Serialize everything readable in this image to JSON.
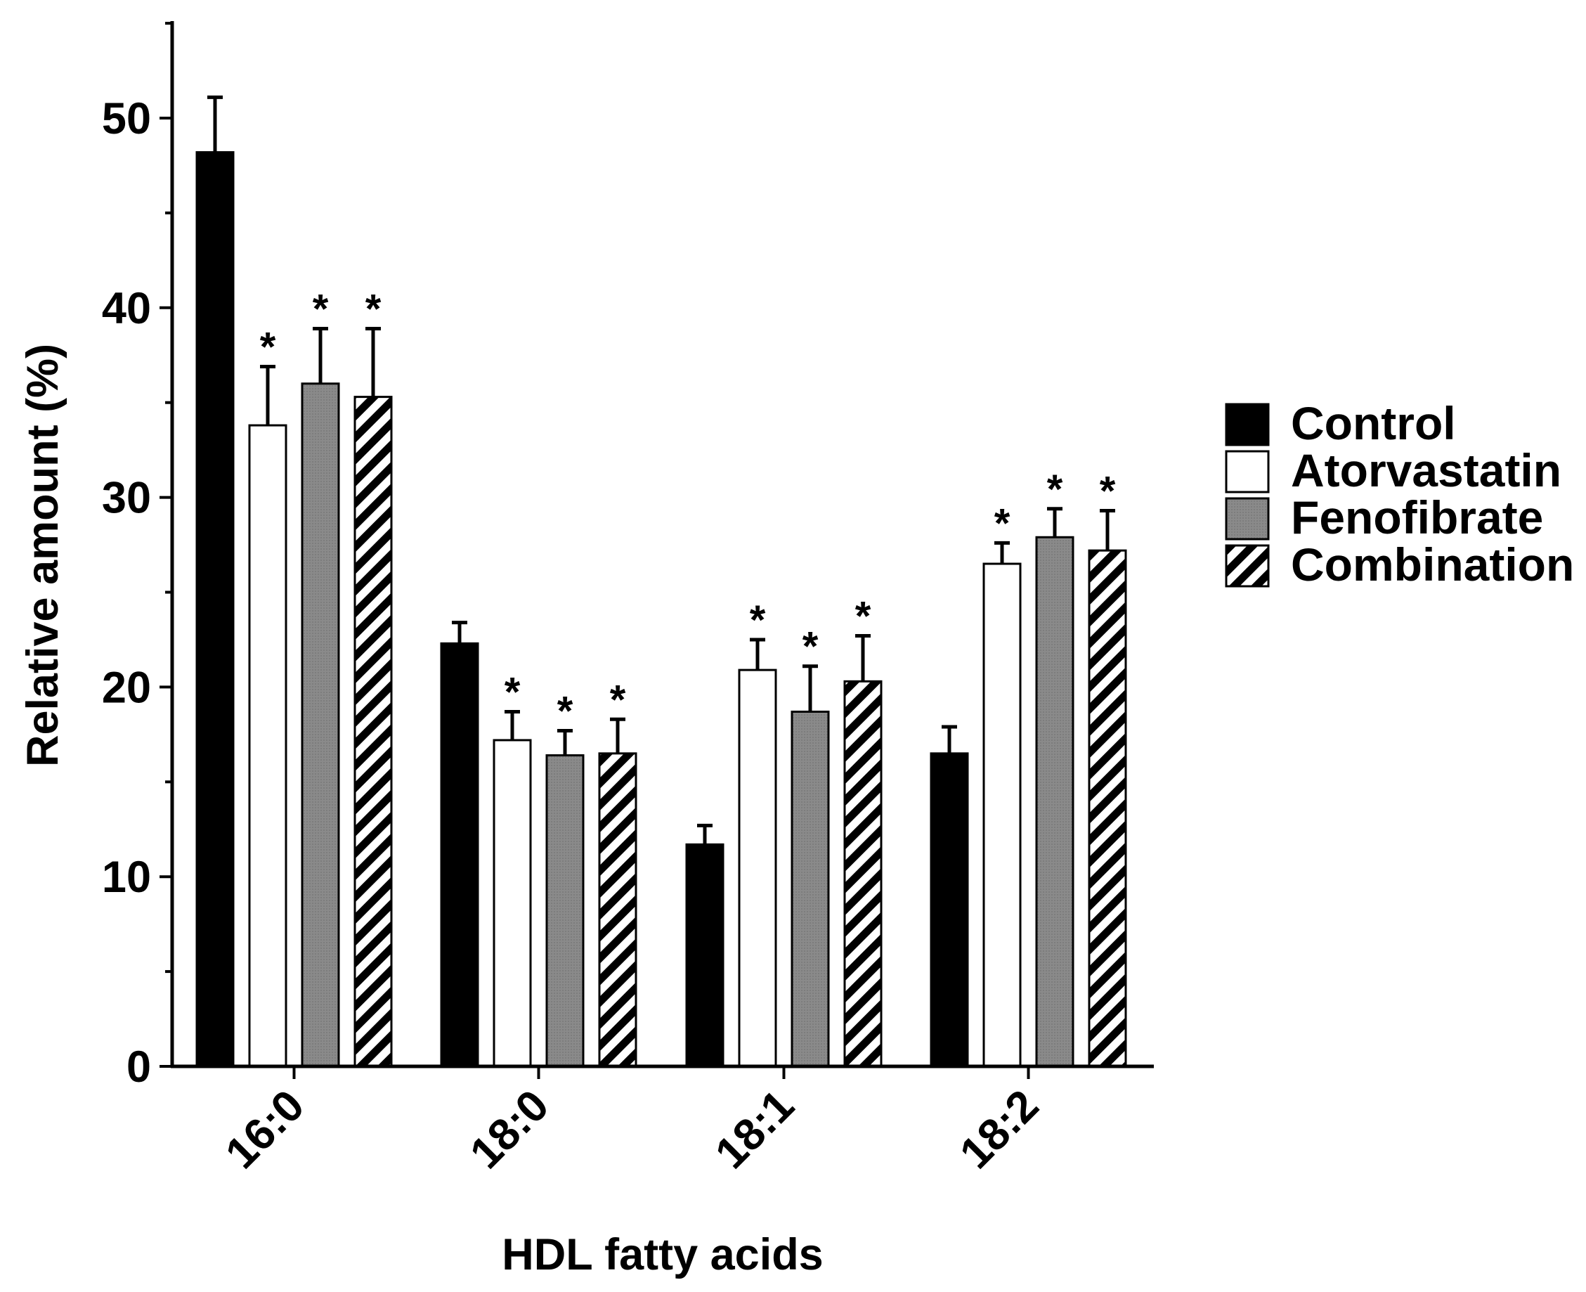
{
  "chart_data": {
    "type": "bar",
    "title": "",
    "xlabel": "HDL fatty acids",
    "ylabel": "Relative amount (%)",
    "ylim": [
      0,
      55
    ],
    "yticks": [
      0,
      10,
      20,
      30,
      40,
      50
    ],
    "categories": [
      "16:0",
      "18:0",
      "18:1",
      "18:2"
    ],
    "legend_position": "right",
    "series": [
      {
        "name": "Control",
        "pattern": "solid-black",
        "color": "#000000",
        "values": [
          48.2,
          22.3,
          11.7,
          16.5
        ],
        "errors": [
          2.9,
          1.1,
          1.0,
          1.4
        ],
        "significance": [
          "",
          "",
          "",
          ""
        ]
      },
      {
        "name": "Atorvastatin",
        "pattern": "white",
        "color": "#ffffff",
        "values": [
          33.8,
          17.2,
          20.9,
          26.5
        ],
        "errors": [
          3.1,
          1.5,
          1.6,
          1.1
        ],
        "significance": [
          "*",
          "*",
          "*",
          "*"
        ]
      },
      {
        "name": "Fenofibrate",
        "pattern": "gray",
        "color": "#8a8a8a",
        "values": [
          36.0,
          16.4,
          18.7,
          27.9
        ],
        "errors": [
          2.9,
          1.3,
          2.4,
          1.5
        ],
        "significance": [
          "*",
          "*",
          "*",
          "*"
        ]
      },
      {
        "name": "Combination",
        "pattern": "diagonal-hatch",
        "color": "#000000",
        "values": [
          35.3,
          16.5,
          20.3,
          27.2
        ],
        "errors": [
          3.6,
          1.8,
          2.4,
          2.1
        ],
        "significance": [
          "*",
          "*",
          "*",
          "*"
        ]
      }
    ]
  }
}
